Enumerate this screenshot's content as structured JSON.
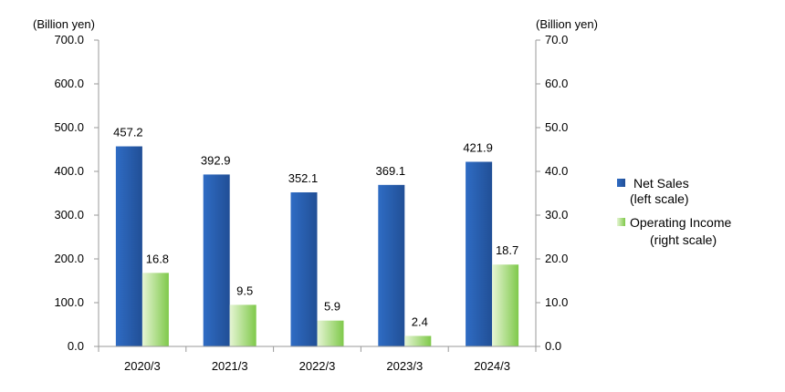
{
  "chart_data": {
    "type": "bar",
    "categories": [
      "2020/3",
      "2021/3",
      "2022/3",
      "2023/3",
      "2024/3"
    ],
    "series": [
      {
        "name": "Net Sales",
        "legend_lines": [
          "Net Sales",
          "(left scale)"
        ],
        "axis": "left",
        "color": "#2a5aa8",
        "values": [
          457.2,
          392.9,
          352.1,
          369.1,
          421.9
        ],
        "labels": [
          "457.2",
          "392.9",
          "352.1",
          "369.1",
          "421.9"
        ]
      },
      {
        "name": "Operating Income",
        "legend_lines": [
          "Operating Income",
          "(right scale)"
        ],
        "axis": "right",
        "color": "#9fd66a",
        "values": [
          16.8,
          9.5,
          5.9,
          2.4,
          18.7
        ],
        "labels": [
          "16.8",
          "9.5",
          "5.9",
          "2.4",
          "18.7"
        ]
      }
    ],
    "y_left": {
      "unit": "(Billion yen)",
      "min": 0,
      "max": 700,
      "ticks": [
        "0.0",
        "100.0",
        "200.0",
        "300.0",
        "400.0",
        "500.0",
        "600.0",
        "700.0"
      ]
    },
    "y_right": {
      "unit": "(Billion yen)",
      "min": 0,
      "max": 70,
      "ticks": [
        "0.0",
        "10.0",
        "20.0",
        "30.0",
        "40.0",
        "50.0",
        "60.0",
        "70.0"
      ]
    },
    "grid": false,
    "legend_position": "right"
  }
}
